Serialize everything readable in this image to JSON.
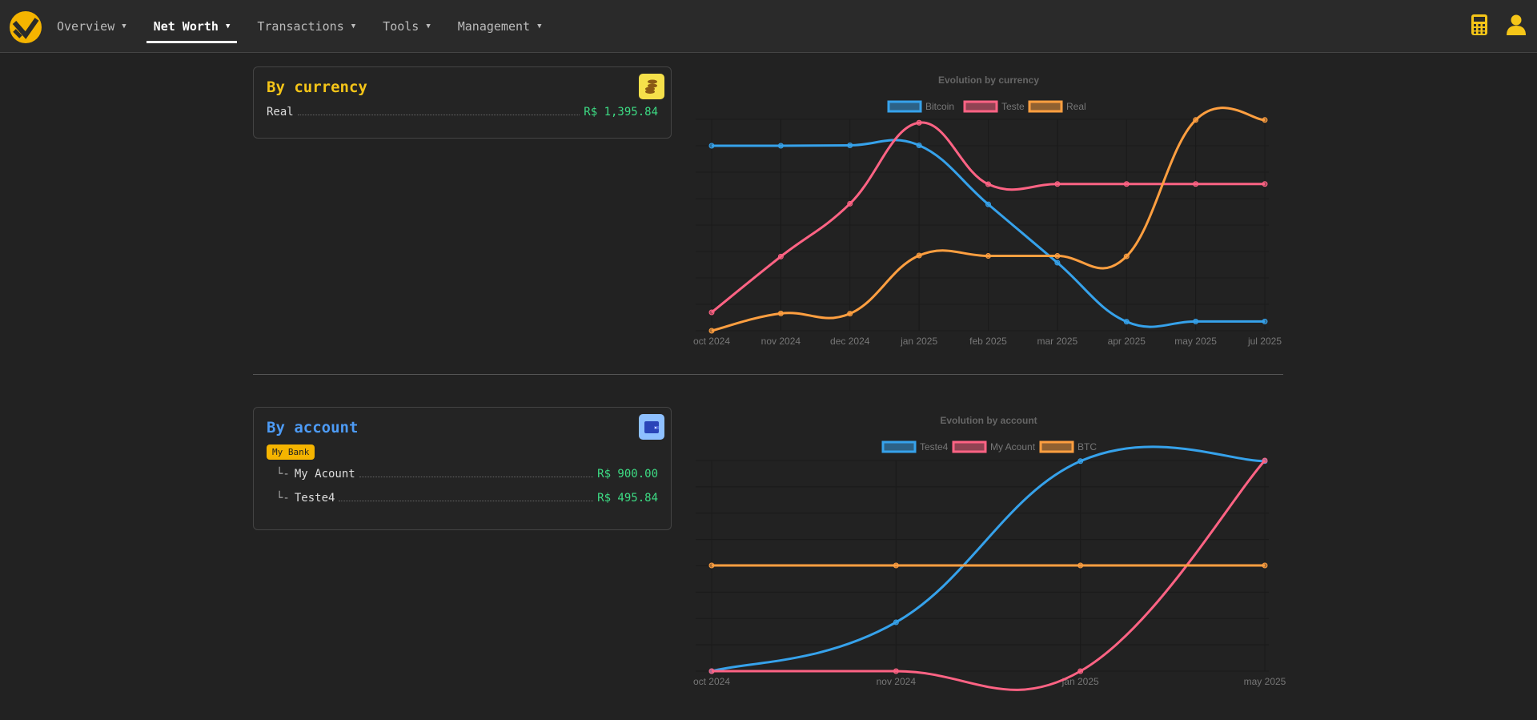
{
  "nav": {
    "items": [
      {
        "label": "Overview",
        "active": false
      },
      {
        "label": "Net Worth",
        "active": true
      },
      {
        "label": "Transactions",
        "active": false
      },
      {
        "label": "Tools",
        "active": false
      },
      {
        "label": "Management",
        "active": false
      }
    ],
    "icons": [
      "calculator-icon",
      "user-icon"
    ]
  },
  "by_currency": {
    "title": "By currency",
    "icon": "coins-icon",
    "rows": [
      {
        "label": "Real",
        "value": "R$ 1,395.84"
      }
    ]
  },
  "by_account": {
    "title": "By account",
    "icon": "wallet-icon",
    "bank": "My Bank",
    "rows": [
      {
        "prefix": "└-",
        "label": "My Acount",
        "value": "R$ 900.00"
      },
      {
        "prefix": "└-",
        "label": "Teste4",
        "value": "R$ 495.84"
      }
    ]
  },
  "colors": {
    "accent": "#f5b400",
    "title_currency": "#f5c518",
    "title_account": "#4d9bf5",
    "value": "#3ddc84",
    "blue": "#36a2eb",
    "pink": "#ff6384",
    "orange": "#ff9f40"
  },
  "chart_data": [
    {
      "type": "line",
      "title": "Evolution by currency",
      "note": "y-axis hidden; values are relative (0-100)",
      "categories": [
        "oct 2024",
        "nov 2024",
        "dec 2024",
        "jan 2025",
        "feb 2025",
        "mar 2025",
        "apr 2025",
        "may 2025",
        "jul 2025"
      ],
      "legend": "top",
      "grid": true,
      "series": [
        {
          "name": "Bitcoin",
          "color": "#36a2eb",
          "values": [
            87.5,
            87.5,
            87.7,
            87.7,
            59.8,
            32.2,
            4.3,
            4.4,
            4.4
          ]
        },
        {
          "name": "Teste",
          "color": "#ff6384",
          "values": [
            8.7,
            35.1,
            60.1,
            98.4,
            69.3,
            69.4,
            69.4,
            69.4,
            69.4
          ]
        },
        {
          "name": "Real",
          "color": "#ff9f40",
          "values": [
            0,
            8.2,
            8.1,
            35.6,
            35.4,
            35.4,
            35.2,
            99.7,
            99.7
          ]
        }
      ]
    },
    {
      "type": "line",
      "title": "Evolution by account",
      "categories": [
        "oct 2024",
        "nov 2024",
        "jan 2025",
        "may 2025"
      ],
      "legend": "top",
      "grid": true,
      "series": [
        {
          "name": "Teste4",
          "color": "#36a2eb",
          "values": [
            0,
            23.2,
            99.7,
            99.7
          ]
        },
        {
          "name": "My Acount",
          "color": "#ff6384",
          "values": [
            0,
            0,
            0,
            100
          ]
        },
        {
          "name": "BTC",
          "color": "#ff9f40",
          "values": [
            50.2,
            50.2,
            50.2,
            50.2
          ]
        }
      ]
    }
  ]
}
